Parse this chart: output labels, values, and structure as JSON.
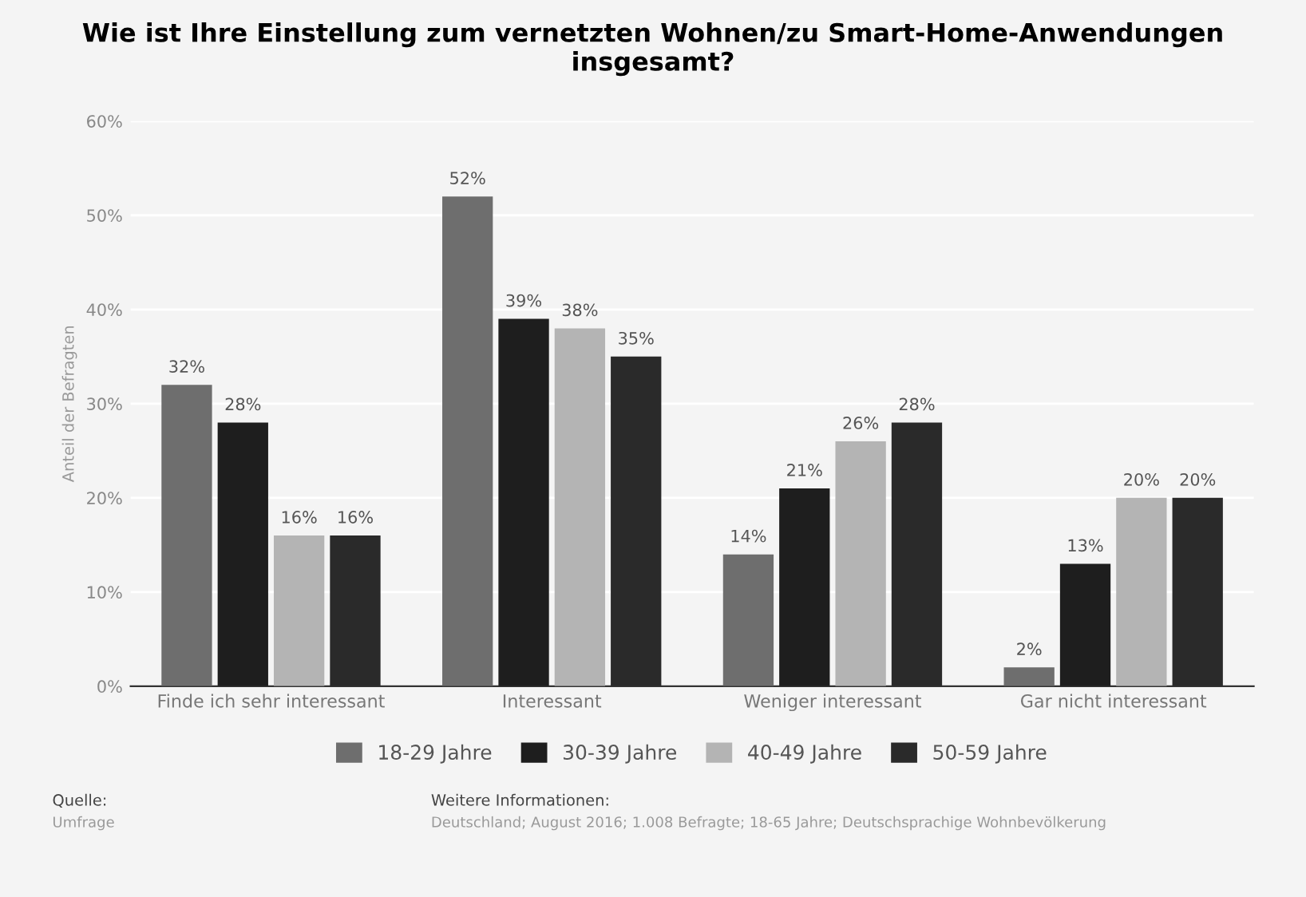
{
  "chart_data": {
    "type": "bar",
    "title": "Wie ist Ihre Einstellung zum vernetzten Wohnen/zu Smart-Home-Anwendungen insgesamt?",
    "ylabel": "Anteil der Befragten",
    "categories": [
      "Finde ich sehr interessant",
      "Interessant",
      "Weniger interessant",
      "Gar nicht interessant"
    ],
    "series": [
      {
        "name": "18-29 Jahre",
        "color": "#6e6e6e",
        "values": [
          32,
          52,
          14,
          2
        ],
        "value_labels": [
          "32%",
          "52%",
          "14%",
          "2%"
        ]
      },
      {
        "name": "30-39 Jahre",
        "color": "#1e1e1e",
        "values": [
          28,
          39,
          21,
          13
        ],
        "value_labels": [
          "28%",
          "39%",
          "21%",
          "13%"
        ]
      },
      {
        "name": "40-49 Jahre",
        "color": "#b4b4b4",
        "values": [
          16,
          38,
          26,
          20
        ],
        "value_labels": [
          "16%",
          "38%",
          "26%",
          "20%"
        ]
      },
      {
        "name": "50-59 Jahre",
        "color": "#2a2a2a",
        "values": [
          16,
          35,
          28,
          20
        ],
        "value_labels": [
          "16%",
          "35%",
          "28%",
          "20%"
        ]
      }
    ],
    "ylim": [
      0,
      60
    ],
    "yticks": [
      {
        "value": 0,
        "label": "0%"
      },
      {
        "value": 10,
        "label": "10%"
      },
      {
        "value": 20,
        "label": "20%"
      },
      {
        "value": 30,
        "label": "30%"
      },
      {
        "value": 40,
        "label": "40%"
      },
      {
        "value": 50,
        "label": "50%"
      },
      {
        "value": 60,
        "label": "60%"
      }
    ],
    "grid": "y",
    "legend": "bottom",
    "annotations": [
      "Quelle:\nUmfrage",
      "Weitere Informationen:\nDeutschland; August 2016; 1.008 Befragte; 18-65 Jahre; Deutschsprachige Wohnbevölkerung"
    ]
  }
}
